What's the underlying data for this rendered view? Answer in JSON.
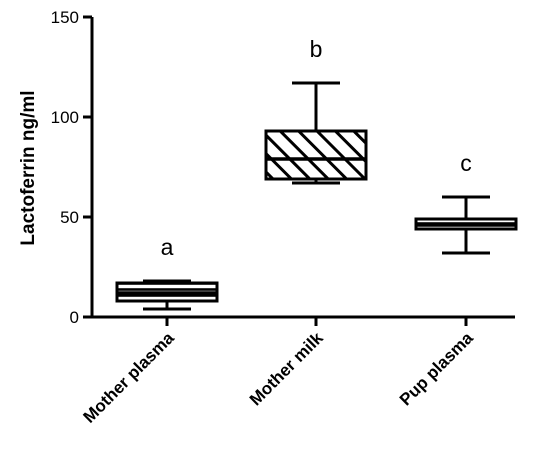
{
  "chart_data": {
    "type": "box",
    "ylabel": "Lactoferrin ng/ml",
    "ylim": [
      0,
      150
    ],
    "yticks": [
      "0",
      "50",
      "100",
      "150"
    ],
    "categories": [
      "Mother plasma",
      "Mother milk",
      "Pup plasma"
    ],
    "boxes": [
      {
        "category": "Mother plasma",
        "min": 4,
        "q1": 8,
        "median": 12,
        "q3": 17,
        "max": 18,
        "significance": "a",
        "pattern": "horizontal-stripes"
      },
      {
        "category": "Mother milk",
        "min": 67,
        "q1": 69,
        "median": 79,
        "q3": 93,
        "max": 117,
        "significance": "b",
        "pattern": "diagonal-stripes"
      },
      {
        "category": "Pup plasma",
        "min": 32,
        "q1": 44,
        "median": 46,
        "q3": 49,
        "max": 60,
        "significance": "c",
        "pattern": "horizontal-stripes"
      }
    ],
    "colors": {
      "stroke": "#000000",
      "background": "#ffffff"
    }
  }
}
